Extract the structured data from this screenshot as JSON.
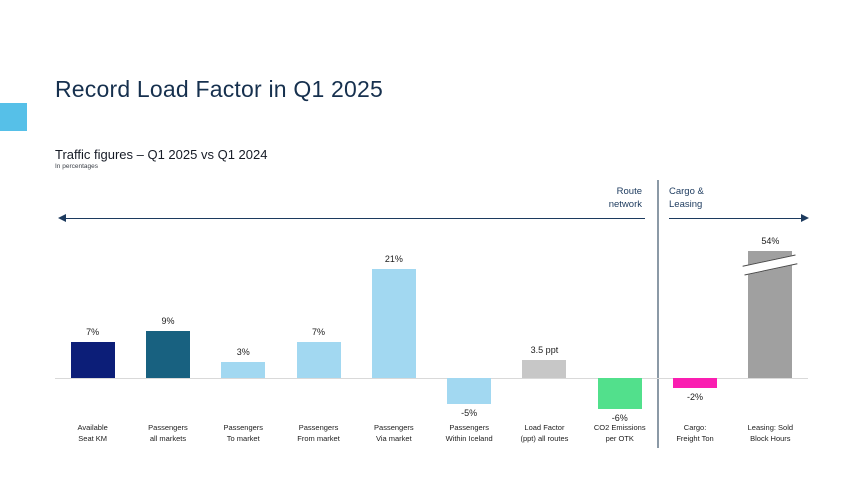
{
  "slide": {
    "title": "Record Load Factor in Q1 2025",
    "subtitle": "Traffic figures – Q1 2025 vs Q1 2024",
    "subtitle_note": "In percentages",
    "accent_color": "#56c0e8",
    "title_color": "#16304e",
    "arrow_color": "#1c3a5e",
    "divider_color": "#8b99a6"
  },
  "sections": {
    "route_network": {
      "label": "Route\nnetwork"
    },
    "cargo_leasing": {
      "label": "Cargo &\nLeasing"
    }
  },
  "chart_data": {
    "type": "bar",
    "title": "Traffic figures – Q1 2025 vs Q1 2024",
    "unit": "percent change year-over-year (Load Factor in percentage points)",
    "grid": false,
    "legend": false,
    "ylim": [
      -8,
      24
    ],
    "categories": [
      "Available\nSeat KM",
      "Passengers\nall markets",
      "Passengers\nTo market",
      "Passengers\nFrom market",
      "Passengers\nVia market",
      "Passengers\nWithin Iceland",
      "Load Factor\n(ppt) all routes",
      "CO2 Emissions\nper OTK",
      "Cargo:\nFreight Ton",
      "Leasing: Sold\nBlock Hours"
    ],
    "bars": [
      {
        "category": "Available\nSeat KM",
        "label": "7%",
        "value": 7,
        "color": "#0c1e78",
        "section": "route_network",
        "axis_break": false
      },
      {
        "category": "Passengers\nall markets",
        "label": "9%",
        "value": 9,
        "color": "#186180",
        "section": "route_network",
        "axis_break": false
      },
      {
        "category": "Passengers\nTo market",
        "label": "3%",
        "value": 3,
        "color": "#a2d8f1",
        "section": "route_network",
        "axis_break": false
      },
      {
        "category": "Passengers\nFrom market",
        "label": "7%",
        "value": 7,
        "color": "#a2d8f1",
        "section": "route_network",
        "axis_break": false
      },
      {
        "category": "Passengers\nVia market",
        "label": "21%",
        "value": 21,
        "color": "#a2d8f1",
        "section": "route_network",
        "axis_break": false
      },
      {
        "category": "Passengers\nWithin Iceland",
        "label": "-5%",
        "value": -5,
        "color": "#a2d8f1",
        "section": "route_network",
        "axis_break": false
      },
      {
        "category": "Load Factor\n(ppt) all routes",
        "label": "3.5 ppt",
        "value": 3.5,
        "color": "#c7c7c7",
        "section": "route_network",
        "axis_break": false
      },
      {
        "category": "CO2 Emissions\nper OTK",
        "label": "-6%",
        "value": -6,
        "color": "#52e08c",
        "section": "route_network",
        "axis_break": false
      },
      {
        "category": "Cargo:\nFreight Ton",
        "label": "-2%",
        "value": -2,
        "color": "#fa1eb1",
        "section": "cargo_leasing",
        "axis_break": false
      },
      {
        "category": "Leasing: Sold\nBlock Hours",
        "label": "54%",
        "value": 54,
        "color": "#a0a0a0",
        "section": "cargo_leasing",
        "axis_break": true
      }
    ]
  }
}
